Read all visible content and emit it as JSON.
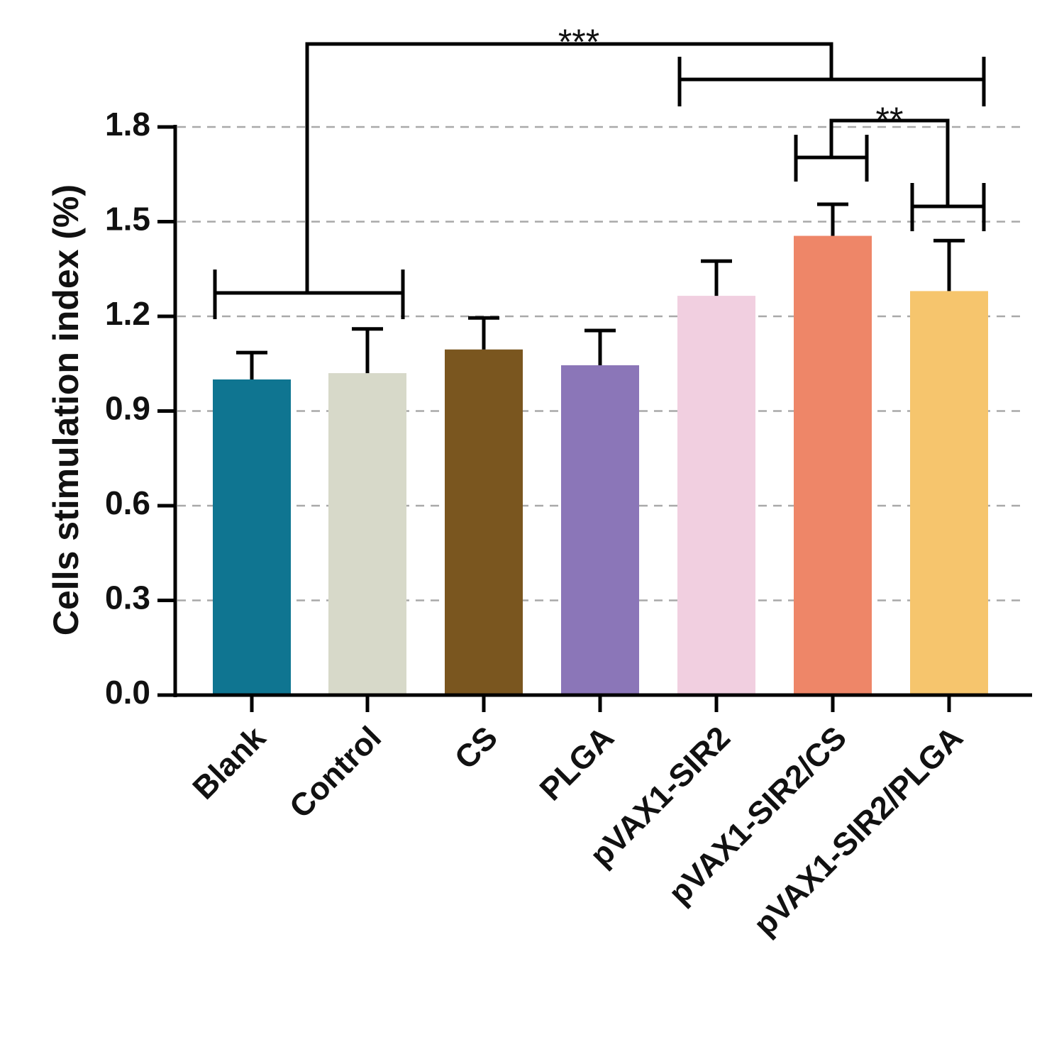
{
  "chart_data": {
    "type": "bar",
    "title": "",
    "xlabel": "",
    "ylabel": "Cells stimulation index (%)",
    "ylim": [
      0,
      1.8
    ],
    "yticks": [
      0.0,
      0.3,
      0.6,
      0.9,
      1.2,
      1.5,
      1.8
    ],
    "ytick_labels": [
      "0.0",
      "0.3",
      "0.6",
      "0.9",
      "1.2",
      "1.5",
      "1.8"
    ],
    "grid": "horizontal dashed",
    "categories": [
      "Blank",
      "Control",
      "CS",
      "PLGA",
      "pVAX1-SIR2",
      "pVAX1-SIR2/CS",
      "pVAX1-SIR2/PLGA"
    ],
    "values": [
      1.0,
      1.02,
      1.095,
      1.045,
      1.265,
      1.455,
      1.28
    ],
    "errors": [
      0.085,
      0.14,
      0.1,
      0.11,
      0.11,
      0.1,
      0.16
    ],
    "colors": [
      "#0f7591",
      "#d7d9c9",
      "#7a561f",
      "#8b76b8",
      "#f1cfe0",
      "#ee8668",
      "#f6c56d"
    ],
    "significance": [
      {
        "label": "***",
        "group_a": [
          "Blank",
          "Control"
        ],
        "group_b": [
          "pVAX1-SIR2",
          "pVAX1-SIR2/CS",
          "pVAX1-SIR2/PLGA"
        ]
      },
      {
        "label": "**",
        "group_a": [
          "pVAX1-SIR2/CS"
        ],
        "group_b": [
          "pVAX1-SIR2/PLGA"
        ]
      }
    ]
  }
}
